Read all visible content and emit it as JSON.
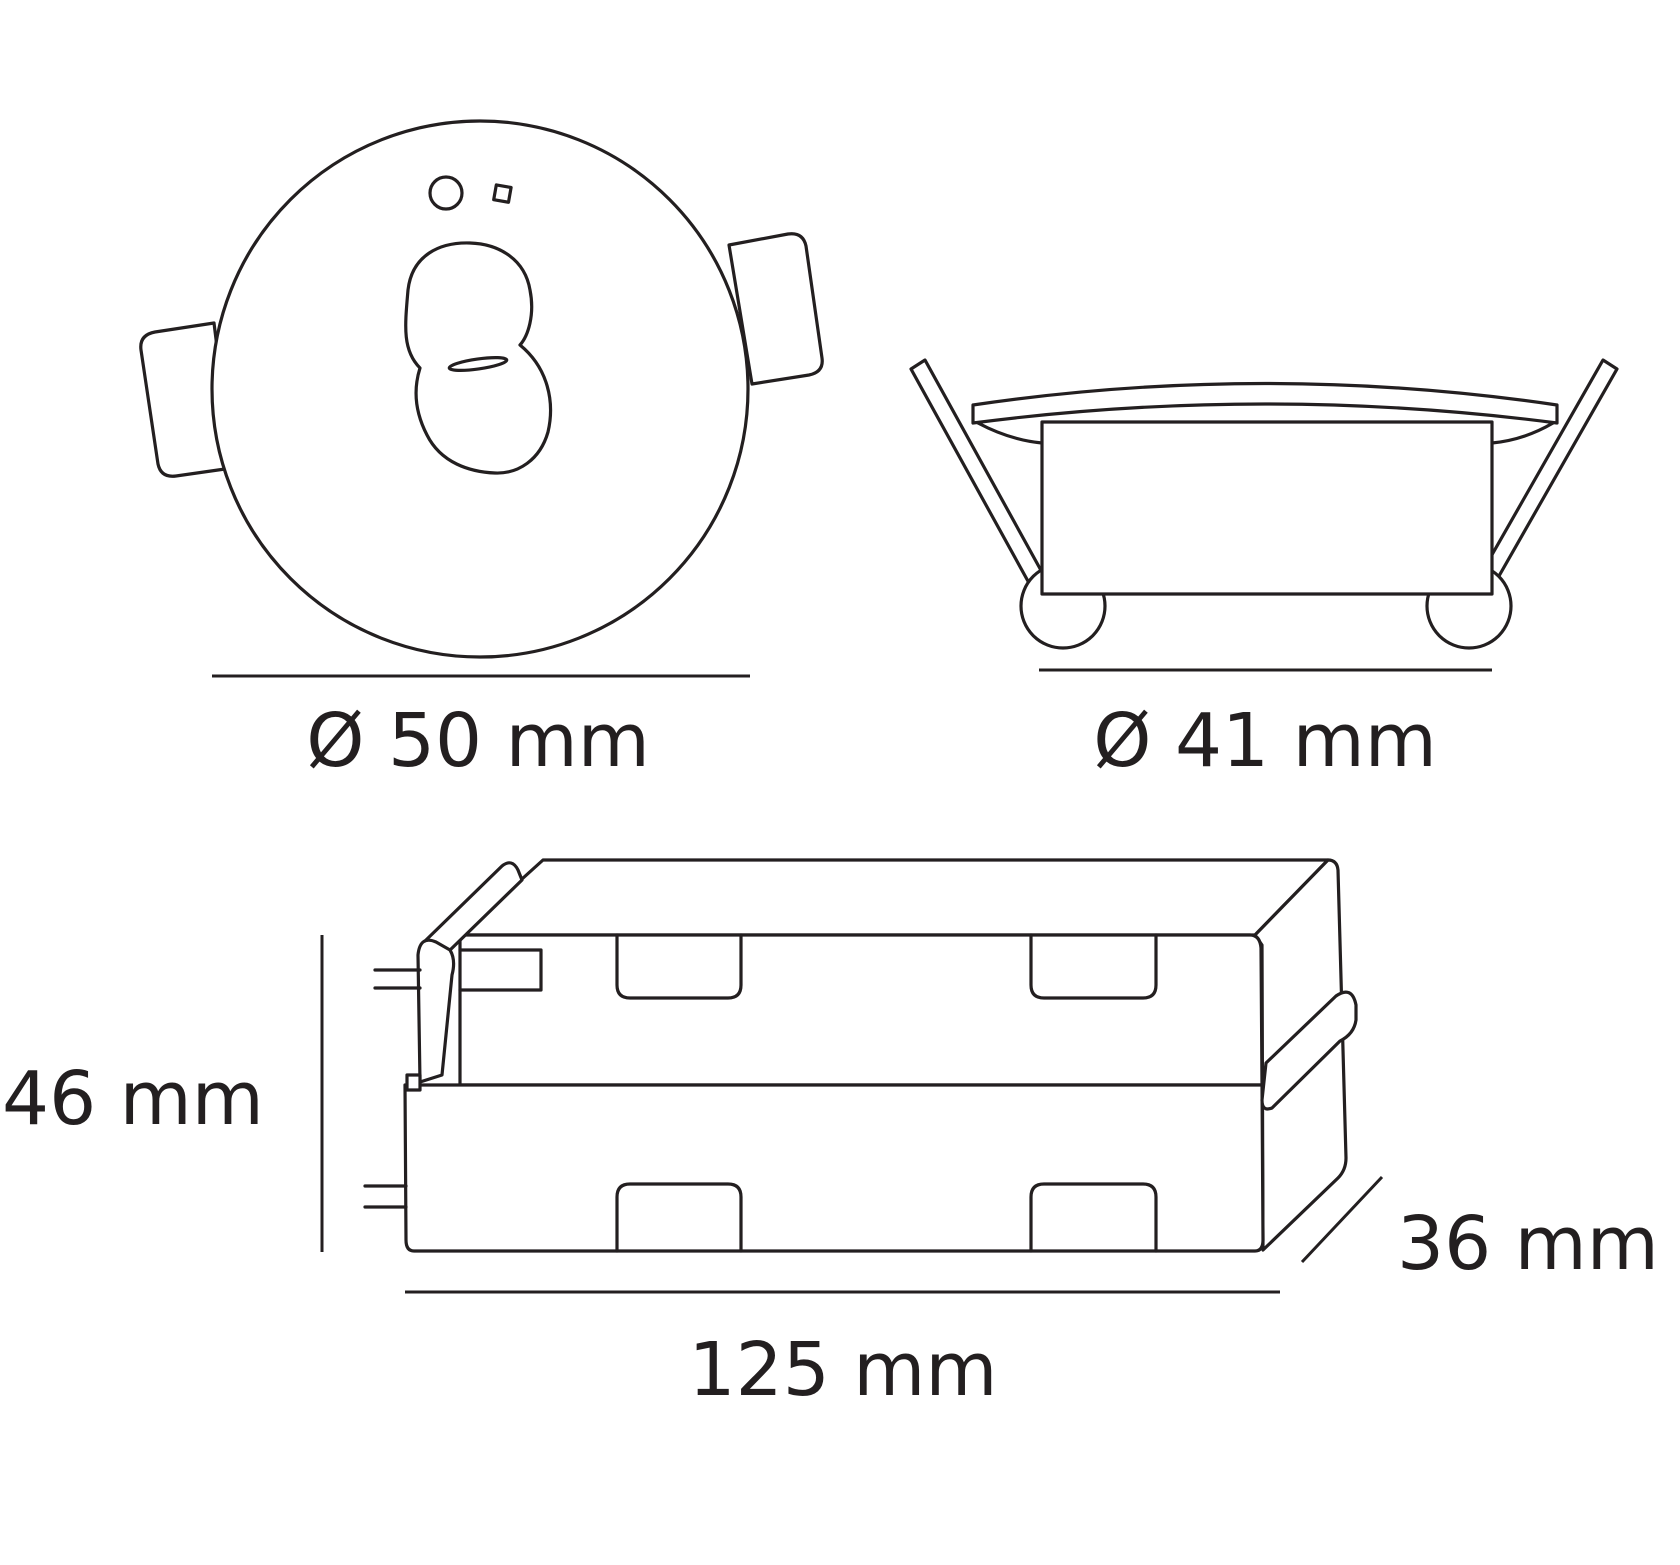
{
  "labels": {
    "front_diameter": "Ø 50 mm",
    "side_diameter": "Ø 41 mm",
    "height": "46 mm",
    "depth": "36 mm",
    "length": "125 mm"
  },
  "colors": {
    "line": "#231f20",
    "background": "#ffffff"
  }
}
